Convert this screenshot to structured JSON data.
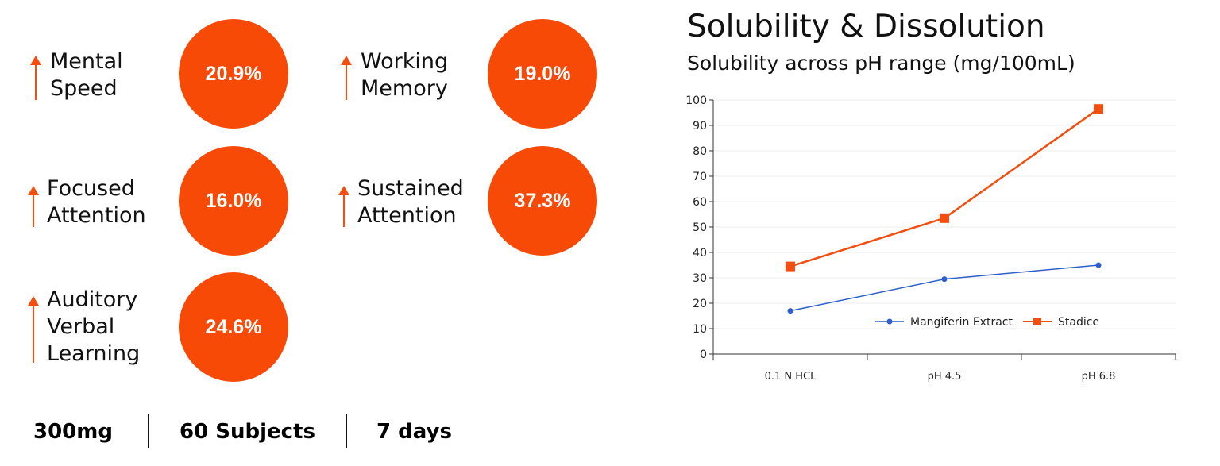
{
  "metrics": [
    {
      "line1": "Mental",
      "line2": "Speed",
      "value": "20.9%"
    },
    {
      "line1": "Working",
      "line2": "Memory",
      "value": "19.0%"
    },
    {
      "line1": "Focused",
      "line2": "Attention",
      "value": "16.0%"
    },
    {
      "line1": "Sustained",
      "line2": "Attention",
      "value": "37.3%"
    },
    {
      "line1": "Auditory",
      "line2": "Verbal",
      "line3": "Learning",
      "value": "24.6%"
    }
  ],
  "stats": {
    "dose": "300mg",
    "subjects": "60 Subjects",
    "duration": "7 days"
  },
  "colors": {
    "accent": "#F84A07",
    "series_blue": "#2F5FC9",
    "series_orange": "#F24E0F"
  },
  "chart_data": {
    "type": "line",
    "title": "Solubility & Dissolution",
    "subtitle": "Solubility across pH range (mg/100mL)",
    "categories": [
      "0.1 N HCL",
      "pH 4.5",
      "pH 6.8"
    ],
    "series": [
      {
        "name": "Mangiferin Extract",
        "values": [
          17,
          29.5,
          35
        ],
        "color": "#2F5FC9",
        "marker": "circle"
      },
      {
        "name": "Stadice",
        "values": [
          34.5,
          53.5,
          96.5
        ],
        "color": "#F24E0F",
        "marker": "square"
      }
    ],
    "ylim": [
      0,
      100
    ],
    "yticks": [
      "0",
      "10",
      "20",
      "30",
      "40",
      "50",
      "60",
      "70",
      "80",
      "90",
      "100"
    ],
    "grid": true,
    "legend": "bottom-right inside plot"
  }
}
